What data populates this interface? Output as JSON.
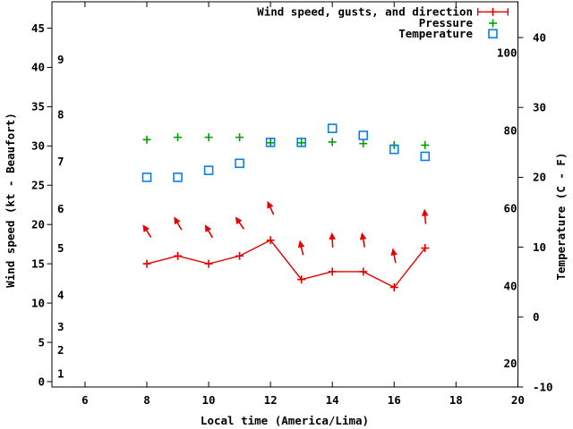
{
  "colors": {
    "wind": "#e60000",
    "pressure": "#00a000",
    "temperature": "#0d7ee8",
    "axis": "#000000",
    "background": "#ffffff"
  },
  "chart_data": {
    "type": "line",
    "title": "",
    "xlabel": "Local time (America/Lima)",
    "x_hours": [
      8,
      9,
      10,
      11,
      12,
      13,
      14,
      15,
      16,
      17
    ],
    "x_axis": {
      "ticks": [
        6,
        8,
        10,
        12,
        14,
        16,
        18,
        20
      ],
      "range": [
        4.93,
        20
      ]
    },
    "y1_axis": {
      "label": "Wind speed (kt - Beaufort)",
      "unit": "kt",
      "ticks_kt": [
        0,
        5,
        10,
        15,
        20,
        25,
        30,
        35,
        40,
        45
      ],
      "range_kt": [
        -0.7,
        48.4
      ],
      "beaufort_scale": [
        {
          "bft": 1,
          "kt": 1
        },
        {
          "bft": 2,
          "kt": 4
        },
        {
          "bft": 3,
          "kt": 7
        },
        {
          "bft": 4,
          "kt": 11
        },
        {
          "bft": 5,
          "kt": 17
        },
        {
          "bft": 6,
          "kt": 22
        },
        {
          "bft": 7,
          "kt": 28
        },
        {
          "bft": 8,
          "kt": 34
        },
        {
          "bft": 9,
          "kt": 41
        }
      ]
    },
    "y2_axis": {
      "label": "Temperature (C - F)",
      "unit": "C",
      "ticks_c": [
        40,
        30,
        20,
        10,
        0,
        -10
      ],
      "range_c": [
        -10,
        45.1
      ],
      "fahrenheit_labels": [
        100,
        80,
        60,
        40,
        20
      ]
    },
    "legend": {
      "position": "top-right"
    },
    "series": [
      {
        "name": "Wind speed, gusts, and direction",
        "axis": "y1",
        "style": "linespoints",
        "marker": "plus",
        "color_key": "wind",
        "wind_speed_kt": [
          15,
          16,
          15,
          16,
          18,
          13,
          14,
          14,
          12,
          17
        ],
        "gust_kt": [
          20,
          21,
          20,
          21,
          23,
          18,
          19,
          19,
          17,
          22
        ],
        "arrow_tilt_deg_from_vertical": [
          -33,
          -30,
          -30,
          -35,
          -25,
          -13,
          -3,
          -11,
          -11,
          -5
        ]
      },
      {
        "name": "Pressure",
        "axis": "y1",
        "style": "points",
        "marker": "plus",
        "color_key": "pressure",
        "values": [
          30.8,
          31.1,
          31.1,
          31.1,
          30.4,
          30.4,
          30.5,
          30.3,
          30.1,
          30.1
        ]
      },
      {
        "name": "Temperature",
        "axis": "y2",
        "style": "points",
        "marker": "open-square",
        "color_key": "temperature",
        "values_c": [
          20,
          20,
          21,
          22,
          25,
          25,
          27,
          26,
          24,
          23
        ]
      }
    ]
  }
}
